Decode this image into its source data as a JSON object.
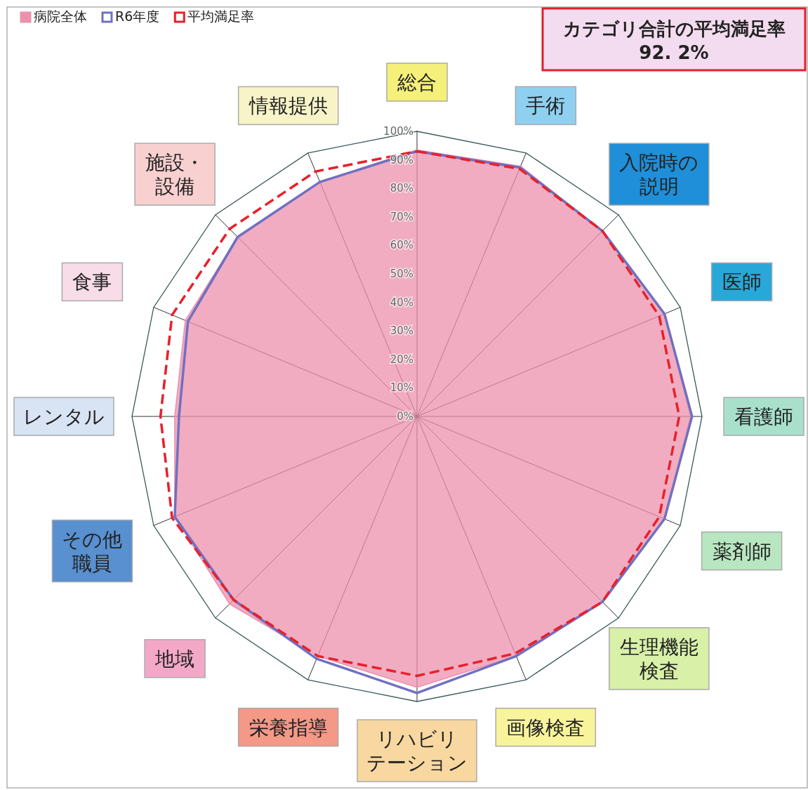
{
  "chart_data": {
    "type": "radar",
    "categories": [
      "総合",
      "手術",
      "入院時の説明",
      "医師",
      "看護師",
      "薬剤師",
      "生理機能検査",
      "画像検査",
      "リハビリテーション",
      "栄養指導",
      "地域",
      "その他職員",
      "レンタル",
      "食事",
      "施設・設備",
      "情報提供"
    ],
    "colors": [
      "#f5f07a",
      "#8fd0f0",
      "#1e8fd8",
      "#27a8d8",
      "#a8e0cc",
      "#b8e6c0",
      "#d8f0a8",
      "#f8f49c",
      "#f8d8a0",
      "#f49888",
      "#f4a8c8",
      "#5890d0",
      "#d8e4f4",
      "#f8dce8",
      "#f8d0d0",
      "#f8f4c8"
    ],
    "series": [
      {
        "name": "病院全体",
        "type": "area",
        "color": "#ec90ac",
        "values": [
          93.5,
          95,
          92,
          94,
          96,
          94,
          92,
          91,
          95,
          91,
          93,
          92,
          85,
          88,
          89,
          89
        ]
      },
      {
        "name": "R6年度",
        "color": "#7070c0",
        "values": [
          93,
          94.5,
          92,
          94,
          96.5,
          94,
          92,
          91,
          97,
          92,
          91,
          92,
          83.5,
          87,
          89,
          89
        ]
      },
      {
        "name": "平均満足率",
        "color": "#e8202a",
        "line_style": "dashed",
        "values": [
          93,
          94,
          92,
          92,
          92,
          92,
          92,
          90,
          91,
          91,
          91,
          93,
          90,
          93,
          93,
          93
        ]
      }
    ],
    "ylim": [
      0,
      100
    ],
    "yticks": [
      {
        "value": 0,
        "label": "0%"
      },
      {
        "value": 10,
        "label": "10%"
      },
      {
        "value": 20,
        "label": "20%"
      },
      {
        "value": 30,
        "label": "30%"
      },
      {
        "value": 40,
        "label": "40%"
      },
      {
        "value": 50,
        "label": "50%"
      },
      {
        "value": 60,
        "label": "60%"
      },
      {
        "value": 70,
        "label": "70%"
      },
      {
        "value": 80,
        "label": "80%"
      },
      {
        "value": 90,
        "label": "90%"
      },
      {
        "value": 100,
        "label": "100%"
      }
    ],
    "grid": false,
    "legend": "top left",
    "annotations": [
      "カテゴリ合計の平均満足率\n92. 2%"
    ]
  }
}
